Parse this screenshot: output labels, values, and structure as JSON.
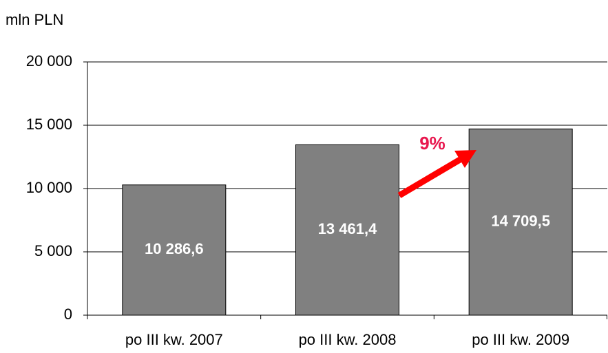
{
  "chart_data": {
    "type": "bar",
    "y_label": "mln PLN",
    "categories": [
      "po III kw. 2007",
      "po III kw. 2008",
      "po III kw. 2009"
    ],
    "values": [
      10286.6,
      13461.4,
      14709.5
    ],
    "value_labels": [
      "10 286,6",
      "13 461,4",
      "14 709,5"
    ],
    "color": "#808080",
    "ylim": [
      0,
      20000
    ],
    "yticks": [
      0,
      {
        "value": 5000,
        "label": "5 000"
      },
      {
        "value": 10000,
        "label": "10 000"
      },
      {
        "value": 15000,
        "label": "15 000"
      },
      {
        "value": 20000,
        "label": "20 000"
      }
    ],
    "grid": true,
    "annotation": "9%"
  }
}
